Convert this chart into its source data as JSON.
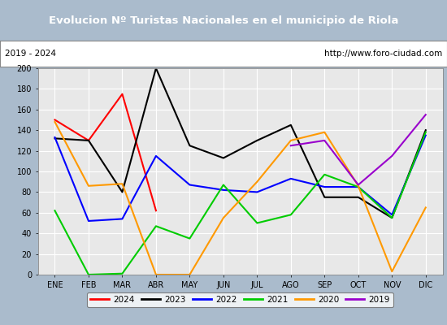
{
  "title": "Evolucion Nº Turistas Nacionales en el municipio de Riola",
  "subtitle_left": "2019 - 2024",
  "subtitle_right": "http://www.foro-ciudad.com",
  "months": [
    "ENE",
    "FEB",
    "MAR",
    "ABR",
    "MAY",
    "JUN",
    "JUL",
    "AGO",
    "SEP",
    "OCT",
    "NOV",
    "DIC"
  ],
  "series": {
    "2024": [
      150,
      130,
      175,
      62,
      null,
      null,
      null,
      null,
      null,
      null,
      null,
      null
    ],
    "2023": [
      132,
      130,
      80,
      200,
      125,
      113,
      130,
      145,
      75,
      75,
      55,
      140
    ],
    "2022": [
      133,
      52,
      54,
      115,
      87,
      82,
      80,
      93,
      85,
      85,
      58,
      135
    ],
    "2021": [
      62,
      0,
      1,
      47,
      35,
      87,
      50,
      58,
      97,
      85,
      55,
      138
    ],
    "2020": [
      148,
      86,
      88,
      0,
      0,
      55,
      90,
      130,
      138,
      86,
      3,
      65
    ],
    "2019": [
      null,
      null,
      null,
      null,
      null,
      null,
      null,
      125,
      130,
      87,
      115,
      155
    ]
  },
  "colors": {
    "2024": "#ff0000",
    "2023": "#000000",
    "2022": "#0000ff",
    "2021": "#00cc00",
    "2020": "#ff9900",
    "2019": "#9900cc"
  },
  "ylim": [
    0,
    200
  ],
  "yticks": [
    0,
    20,
    40,
    60,
    80,
    100,
    120,
    140,
    160,
    180,
    200
  ],
  "plot_bg": "#e8e8e8",
  "title_bg": "#5599dd",
  "title_color": "#ffffff",
  "grid_color": "#ffffff",
  "fig_bg": "#aabbcc"
}
